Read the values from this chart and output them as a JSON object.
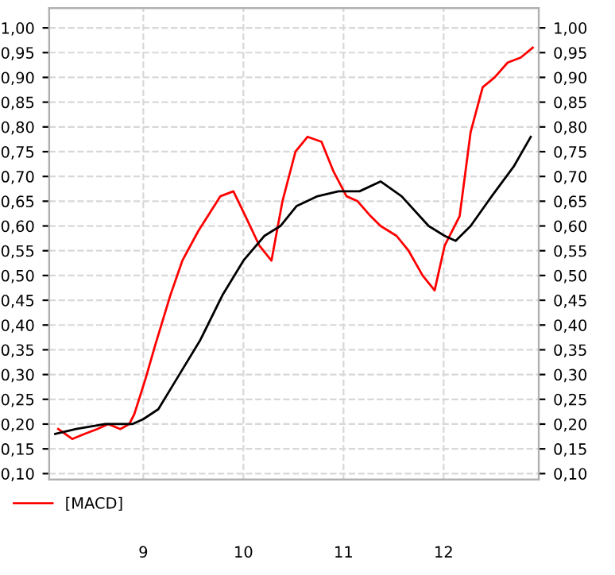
{
  "chart_data": {
    "type": "line",
    "series": [
      {
        "name": "[MACD]",
        "color": "#ff0000",
        "x": [
          8.15,
          8.29,
          8.41,
          8.54,
          8.65,
          8.77,
          8.86,
          8.91,
          9.02,
          9.12,
          9.27,
          9.39,
          9.55,
          9.77,
          9.9,
          10.02,
          10.16,
          10.28,
          10.39,
          10.52,
          10.64,
          10.78,
          10.9,
          11.03,
          11.14,
          11.27,
          11.37,
          11.53,
          11.65,
          11.79,
          11.91,
          12.01,
          12.16,
          12.27,
          12.39,
          12.51,
          12.64,
          12.77,
          12.89
        ],
        "values": [
          0.19,
          0.17,
          0.18,
          0.19,
          0.2,
          0.19,
          0.2,
          0.22,
          0.29,
          0.36,
          0.46,
          0.53,
          0.59,
          0.66,
          0.67,
          0.62,
          0.56,
          0.53,
          0.65,
          0.75,
          0.78,
          0.77,
          0.71,
          0.66,
          0.65,
          0.62,
          0.6,
          0.58,
          0.55,
          0.5,
          0.47,
          0.56,
          0.62,
          0.79,
          0.88,
          0.9,
          0.93,
          0.94,
          0.96
        ]
      },
      {
        "color": "#000000",
        "x": [
          8.12,
          8.33,
          8.62,
          8.89,
          9.0,
          9.15,
          9.36,
          9.57,
          9.79,
          10.0,
          10.21,
          10.37,
          10.53,
          10.74,
          10.95,
          11.16,
          11.37,
          11.58,
          11.85,
          12.01,
          12.12,
          12.27,
          12.48,
          12.7,
          12.87
        ],
        "values": [
          0.18,
          0.19,
          0.2,
          0.2,
          0.21,
          0.23,
          0.3,
          0.37,
          0.46,
          0.53,
          0.58,
          0.6,
          0.64,
          0.66,
          0.67,
          0.67,
          0.69,
          0.66,
          0.6,
          0.58,
          0.57,
          0.6,
          0.66,
          0.72,
          0.78
        ]
      }
    ],
    "xlim": [
      8.06,
      12.95
    ],
    "xticks": [
      9,
      10,
      11,
      12
    ],
    "ylim": [
      0.088,
      1.04
    ],
    "yticks": [
      {
        "value": 0.1,
        "label": "0,10"
      },
      {
        "value": 0.15,
        "label": "0,15"
      },
      {
        "value": 0.2,
        "label": "0,20"
      },
      {
        "value": 0.25,
        "label": "0,25"
      },
      {
        "value": 0.3,
        "label": "0,30"
      },
      {
        "value": 0.35,
        "label": "0,35"
      },
      {
        "value": 0.4,
        "label": "0,40"
      },
      {
        "value": 0.45,
        "label": "0,45"
      },
      {
        "value": 0.5,
        "label": "0,50"
      },
      {
        "value": 0.55,
        "label": "0,55"
      },
      {
        "value": 0.6,
        "label": "0,60"
      },
      {
        "value": 0.65,
        "label": "0,65"
      },
      {
        "value": 0.7,
        "label": "0,70"
      },
      {
        "value": 0.75,
        "label": "0,75"
      },
      {
        "value": 0.8,
        "label": "0,80"
      },
      {
        "value": 0.85,
        "label": "0,85"
      },
      {
        "value": 0.9,
        "label": "0,90"
      },
      {
        "value": 0.95,
        "label": "0,95"
      },
      {
        "value": 1.0,
        "label": "1,00"
      }
    ],
    "y2lim": [
      0.088,
      1.04
    ],
    "y2ticks": [
      {
        "value": 0.1,
        "label": "0,10"
      },
      {
        "value": 0.15,
        "label": "0,15"
      },
      {
        "value": 0.2,
        "label": "0,20"
      },
      {
        "value": 0.25,
        "label": "0,25"
      },
      {
        "value": 0.3,
        "label": "0,30"
      },
      {
        "value": 0.35,
        "label": "0,35"
      },
      {
        "value": 0.4,
        "label": "0,40"
      },
      {
        "value": 0.45,
        "label": "0,45"
      },
      {
        "value": 0.5,
        "label": "0,50"
      },
      {
        "value": 0.55,
        "label": "0,55"
      },
      {
        "value": 0.6,
        "label": "0,60"
      },
      {
        "value": 0.65,
        "label": "0,65"
      },
      {
        "value": 0.7,
        "label": "0,70"
      },
      {
        "value": 0.75,
        "label": "0,75"
      },
      {
        "value": 0.8,
        "label": "0,80"
      },
      {
        "value": 0.85,
        "label": "0,85"
      },
      {
        "value": 0.9,
        "label": "0,90"
      },
      {
        "value": 0.95,
        "label": "0,95"
      },
      {
        "value": 1.0,
        "label": "1,00"
      }
    ],
    "grid": true,
    "legend": "bottom left",
    "marker": "none",
    "line_style": "solid"
  }
}
